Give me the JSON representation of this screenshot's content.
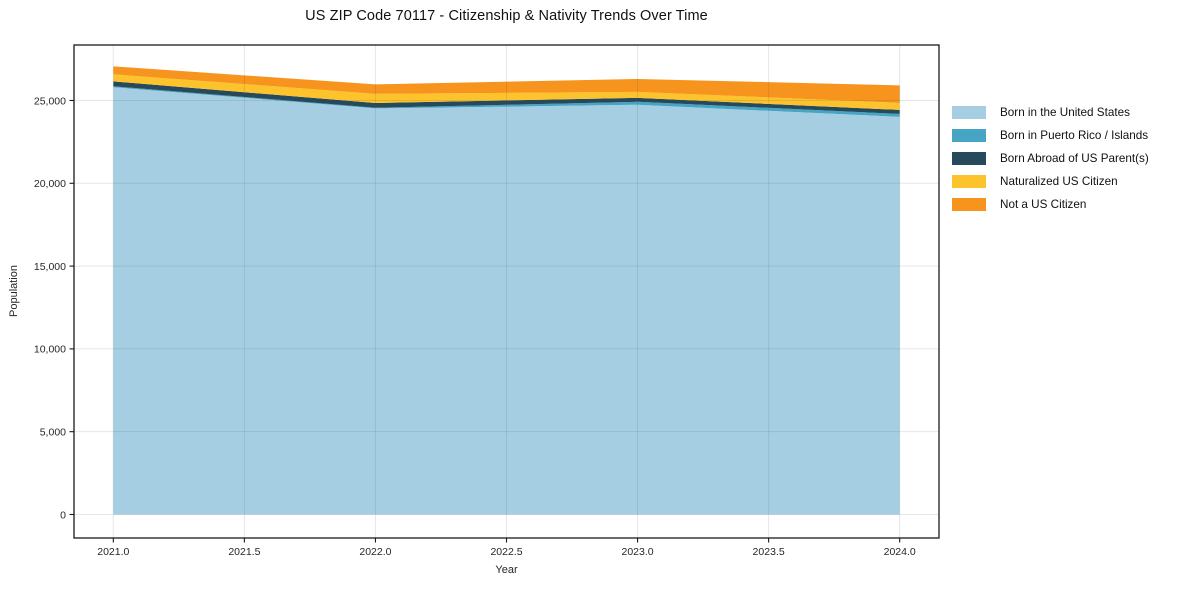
{
  "chart_data": {
    "type": "area",
    "stacked": true,
    "title": "US ZIP Code 70117 - Citizenship & Nativity Trends Over Time",
    "xlabel": "Year",
    "ylabel": "Population",
    "x": [
      2021,
      2022,
      2023,
      2024
    ],
    "series": [
      {
        "name": "Born in the United States",
        "color": "#a6cee3",
        "values": [
          25800,
          24520,
          24740,
          24010
        ]
      },
      {
        "name": "Born in Puerto Rico / Islands",
        "color": "#46a4c4",
        "values": [
          60,
          40,
          180,
          180
        ]
      },
      {
        "name": "Born Abroad of US Parent(s)",
        "color": "#27495c",
        "values": [
          290,
          290,
          240,
          240
        ]
      },
      {
        "name": "Naturalized US Citizen",
        "color": "#fcc32d",
        "values": [
          430,
          550,
          360,
          420
        ]
      },
      {
        "name": "Not a US Citizen",
        "color": "#f7941e",
        "values": [
          480,
          570,
          780,
          1060
        ]
      }
    ],
    "x_ticks": [
      {
        "v": 2021.0,
        "label": "2021.0"
      },
      {
        "v": 2021.5,
        "label": "2021.5"
      },
      {
        "v": 2022.0,
        "label": "2022.0"
      },
      {
        "v": 2022.5,
        "label": "2022.5"
      },
      {
        "v": 2023.0,
        "label": "2023.0"
      },
      {
        "v": 2023.5,
        "label": "2023.5"
      },
      {
        "v": 2024.0,
        "label": "2024.0"
      }
    ],
    "y_ticks": [
      {
        "v": 0,
        "label": "0"
      },
      {
        "v": 5000,
        "label": "5,000"
      },
      {
        "v": 10000,
        "label": "10,000"
      },
      {
        "v": 15000,
        "label": "15,000"
      },
      {
        "v": 20000,
        "label": "20,000"
      },
      {
        "v": 25000,
        "label": "25,000"
      }
    ],
    "xlim": [
      2020.85,
      2024.15
    ],
    "ylim": [
      -1420,
      28350
    ],
    "grid": true,
    "legend_position": "right"
  }
}
